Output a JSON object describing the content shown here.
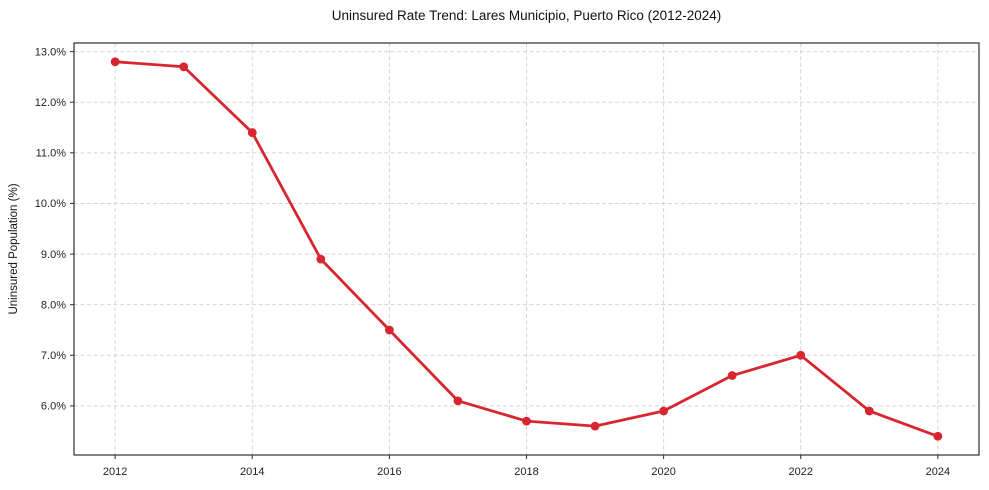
{
  "chart_data": {
    "type": "line",
    "title": "Uninsured Rate Trend: Lares Municipio, Puerto Rico (2012-2024)",
    "xlabel": "",
    "ylabel": "Uninsured Population (%)",
    "x": [
      2012,
      2013,
      2014,
      2015,
      2016,
      2017,
      2018,
      2019,
      2020,
      2021,
      2022,
      2023,
      2024
    ],
    "values": [
      12.8,
      12.7,
      11.4,
      8.9,
      7.5,
      6.1,
      5.7,
      5.6,
      5.9,
      6.6,
      7.0,
      5.9,
      5.4
    ],
    "xticks": [
      2012,
      2014,
      2016,
      2018,
      2020,
      2022,
      2024
    ],
    "yticks": [
      6.0,
      7.0,
      8.0,
      9.0,
      10.0,
      11.0,
      12.0,
      13.0
    ],
    "ytick_suffix": "%",
    "xlim": [
      2011.4,
      2024.6
    ],
    "ylim": [
      5.03,
      13.17
    ],
    "grid": true,
    "grid_style": "dashed",
    "legend_position": "none",
    "line_color": "#d7262f",
    "marker": "circle"
  }
}
